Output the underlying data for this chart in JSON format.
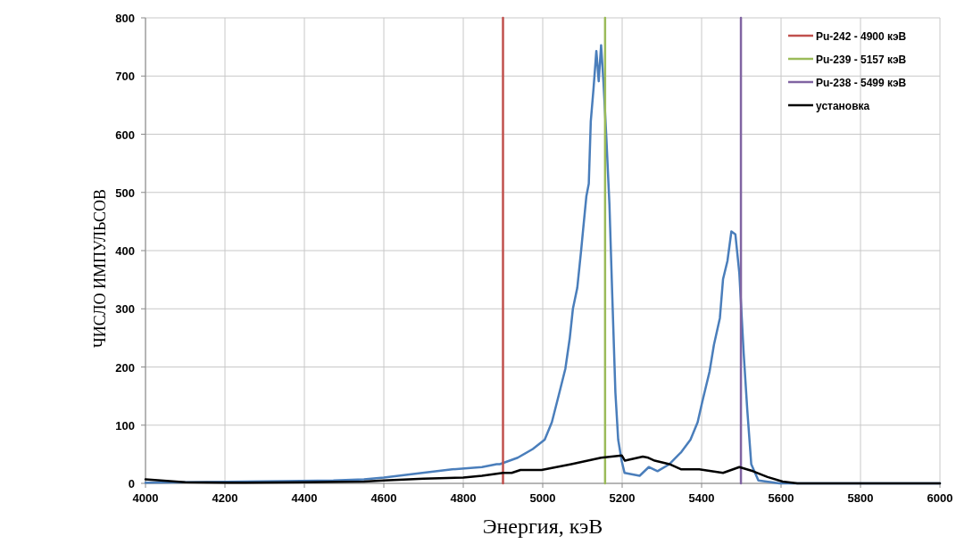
{
  "chart_data": {
    "type": "line",
    "xlabel": "Энергия, кэВ",
    "ylabel": "ЧИСЛО ИМПУЛЬСОВ",
    "xlim": [
      4000,
      6000
    ],
    "xticks": [
      4000,
      4200,
      4400,
      4600,
      4800,
      5000,
      5200,
      5400,
      5600,
      5800,
      6000
    ],
    "ylim": [
      0,
      800
    ],
    "yticks": [
      0,
      100,
      200,
      300,
      400,
      500,
      600,
      700,
      800
    ],
    "grid": true,
    "legend": "top right",
    "marker": "none",
    "line_style": "solid",
    "series": [
      {
        "color": "#4a7ebb",
        "x": [
          4000,
          4100,
          4248,
          4350,
          4473,
          4550,
          4600,
          4697,
          4772,
          4847,
          4884,
          4892,
          4937,
          4975,
          5005,
          5023,
          5042,
          5057,
          5068,
          5076,
          5087,
          5097,
          5102,
          5110,
          5116,
          5121,
          5128,
          5135,
          5141,
          5147,
          5153,
          5160,
          5168,
          5175,
          5183,
          5190,
          5199,
          5206,
          5244,
          5267,
          5289,
          5319,
          5349,
          5372,
          5390,
          5402,
          5420,
          5431,
          5446,
          5454,
          5465,
          5475,
          5485,
          5495,
          5506,
          5515,
          5525,
          5543,
          5596,
          5700,
          6000
        ],
        "values": [
          1,
          2,
          3,
          4,
          5,
          7,
          10,
          18,
          24,
          28,
          33,
          33,
          44,
          59,
          75,
          105,
          156,
          197,
          249,
          300,
          336,
          402,
          438,
          494,
          515,
          622,
          679,
          743,
          691,
          753,
          689,
          597,
          479,
          325,
          156,
          75,
          38,
          18,
          13,
          28,
          21,
          33,
          54,
          75,
          105,
          141,
          192,
          238,
          284,
          351,
          382,
          433,
          428,
          361,
          223,
          126,
          33,
          5,
          0,
          0,
          0
        ]
      },
      {
        "name": "Pu-242 - 4900 кэВ",
        "color": "#c0504d",
        "x": [
          4900,
          4900
        ],
        "values": [
          0,
          800
        ]
      },
      {
        "name": "Pu-239 - 5157 кэВ",
        "color": "#9bbb59",
        "x": [
          5157,
          5157
        ],
        "values": [
          0,
          800
        ]
      },
      {
        "name": "Pu-238 - 5499 кэВ",
        "color": "#8064a2",
        "x": [
          5499,
          5499
        ],
        "values": [
          0,
          800
        ]
      },
      {
        "name": "установка",
        "color": "#000000",
        "x": [
          4000,
          4100,
          4250,
          4400,
          4550,
          4600,
          4700,
          4800,
          4847,
          4900,
          4922,
          4944,
          4997,
          5072,
          5147,
          5199,
          5207,
          5252,
          5266,
          5282,
          5319,
          5349,
          5394,
          5454,
          5495,
          5529,
          5566,
          5604,
          5641,
          6000
        ],
        "values": [
          7,
          2,
          1,
          2,
          3,
          5,
          8,
          10,
          13,
          18,
          18,
          23,
          23,
          33,
          44,
          48,
          39,
          46,
          44,
          39,
          33,
          24,
          24,
          18,
          28,
          21,
          11,
          3,
          0,
          0
        ]
      }
    ]
  }
}
